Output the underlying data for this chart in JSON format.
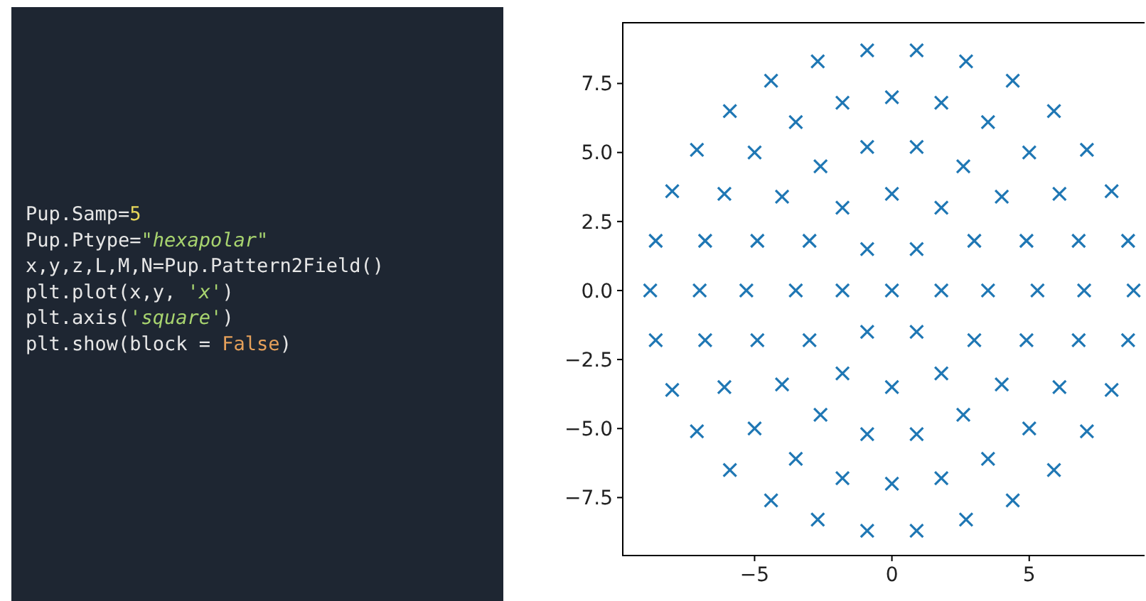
{
  "chart_data": [
    {
      "type": "other",
      "annotations": [
        "Pup.Samp=5",
        "Pup.Ptype=\"hexapolar\"",
        "x,y,z,L,M,N=Pup.Pattern2Field()",
        "plt.plot(x,y, 'x')",
        "plt.axis('square')",
        "plt.show(block = False)"
      ]
    },
    {
      "type": "scatter",
      "marker": "cross",
      "grid": false,
      "x": [
        0,
        1.8,
        0.9,
        -0.9,
        -1.8,
        -0.9,
        0.9,
        3.5,
        3.0,
        1.8,
        0,
        -1.8,
        -3.0,
        -3.5,
        -3.0,
        -1.8,
        0,
        1.8,
        3.0,
        5.3,
        4.9,
        4.0,
        2.6,
        0.9,
        -0.9,
        -2.6,
        -4.0,
        -4.9,
        -5.3,
        -4.9,
        -4.0,
        -2.6,
        -0.9,
        0.9,
        2.6,
        4.0,
        4.9,
        7,
        6.8,
        6.1,
        5.0,
        3.5,
        1.8,
        0,
        -1.8,
        -3.5,
        -5.0,
        -6.1,
        -6.8,
        -7,
        -6.8,
        -6.1,
        -5.0,
        -3.5,
        -1.8,
        0,
        1.8,
        3.5,
        5.0,
        6.1,
        6.8,
        8.8,
        8.6,
        8.0,
        7.1,
        5.9,
        4.4,
        2.7,
        0.9,
        -0.9,
        -2.7,
        -4.4,
        -5.9,
        -7.1,
        -8.0,
        -8.6,
        -8.8,
        -8.6,
        -8.0,
        -7.1,
        -5.9,
        -4.4,
        -2.7,
        -0.9,
        0.9,
        2.7,
        4.4,
        5.9,
        7.1,
        8.0,
        8.6
      ],
      "series": [
        {
          "color": "#1f77b4",
          "values": [
            0,
            0,
            1.5,
            1.5,
            0,
            -1.5,
            -1.5,
            0,
            1.8,
            3.0,
            3.5,
            3.0,
            1.8,
            0,
            -1.8,
            -3.0,
            -3.5,
            -3.0,
            -1.8,
            0,
            1.8,
            3.4,
            4.5,
            5.2,
            5.2,
            4.5,
            3.4,
            1.8,
            0,
            -1.8,
            -3.4,
            -4.5,
            -5.2,
            -5.2,
            -4.5,
            -3.4,
            -1.8,
            0,
            1.8,
            3.5,
            5.0,
            6.1,
            6.8,
            7,
            6.8,
            6.1,
            5.0,
            3.5,
            1.8,
            0,
            -1.8,
            -3.5,
            -5.0,
            -6.1,
            -6.8,
            -7,
            -6.8,
            -6.1,
            -5.0,
            -3.5,
            -1.8,
            0,
            1.8,
            3.6,
            5.1,
            6.5,
            7.6,
            8.3,
            8.7,
            8.7,
            8.3,
            7.6,
            6.5,
            5.1,
            3.6,
            1.8,
            0,
            -1.8,
            -3.6,
            -5.1,
            -6.5,
            -7.6,
            -8.3,
            -8.7,
            -8.7,
            -8.3,
            -7.6,
            -6.5,
            -5.1,
            -3.6,
            -1.8
          ]
        }
      ],
      "xlim": [
        -9.8,
        9.2
      ],
      "ylim": [
        -9.6,
        9.7
      ],
      "xticks": [
        {
          "value": -5,
          "label": "−5"
        },
        0,
        5
      ],
      "yticks": [
        {
          "value": -7.5,
          "label": "−7.5"
        },
        {
          "value": -5,
          "label": "−5.0"
        },
        {
          "value": -2.5,
          "label": "−2.5"
        },
        {
          "value": 0,
          "label": "0.0"
        },
        {
          "value": 2.5,
          "label": "2.5"
        },
        {
          "value": 5,
          "label": "5.0"
        },
        {
          "value": 7.5,
          "label": "7.5"
        }
      ]
    }
  ]
}
